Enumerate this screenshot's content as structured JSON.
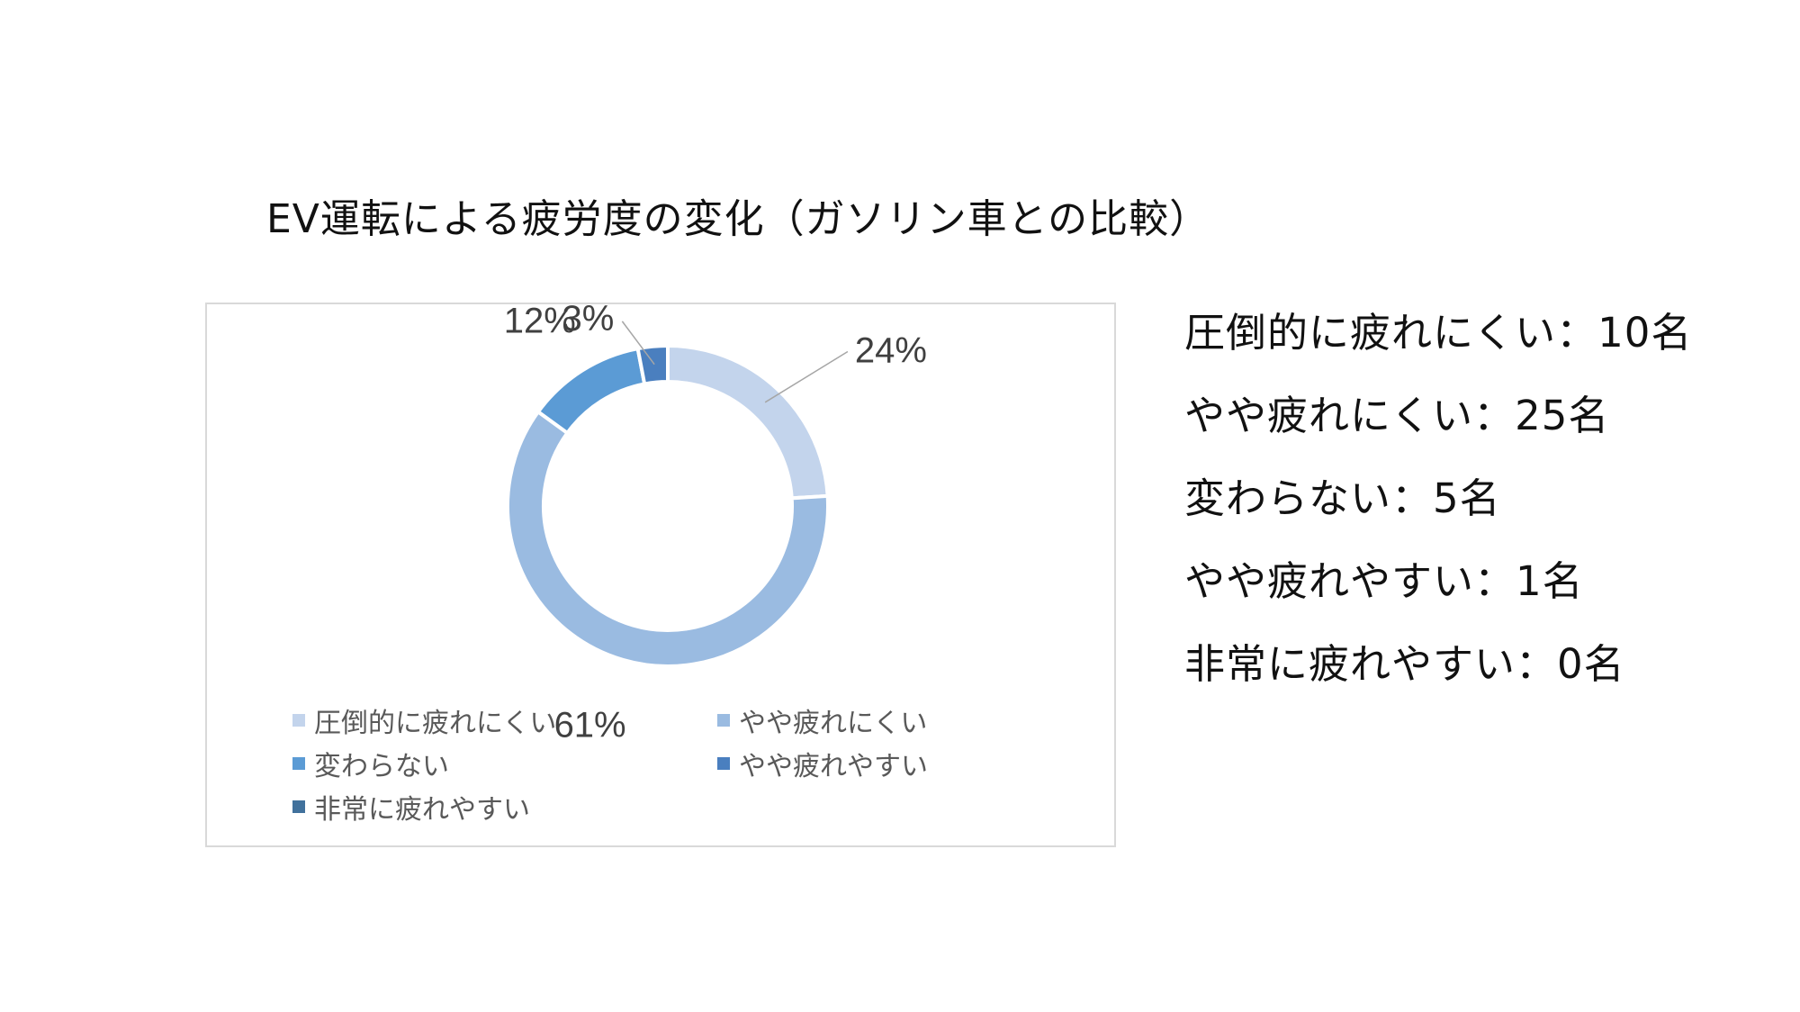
{
  "title": "EV運転による疲労度の変化（ガソリン車との比較）",
  "chart_data": {
    "type": "pie",
    "subtype": "donut",
    "title": "",
    "categories": [
      "圧倒的に疲れにくい",
      "やや疲れにくい",
      "変わらない",
      "やや疲れやすい",
      "非常に疲れやすい"
    ],
    "values": [
      24,
      61,
      12,
      3,
      0
    ],
    "value_labels": [
      "24%",
      "61%",
      "12%",
      "3%",
      ""
    ],
    "colors": [
      "#c3d4ec",
      "#9abbe1",
      "#5b9bd5",
      "#4a7fbf",
      "#41719c"
    ],
    "legend_position": "bottom",
    "grid": false
  },
  "stats": [
    "圧倒的に疲れにくい：10名",
    "やや疲れにくい：25名",
    "変わらない：5名",
    "やや疲れやすい：1名",
    "非常に疲れやすい：0名"
  ]
}
